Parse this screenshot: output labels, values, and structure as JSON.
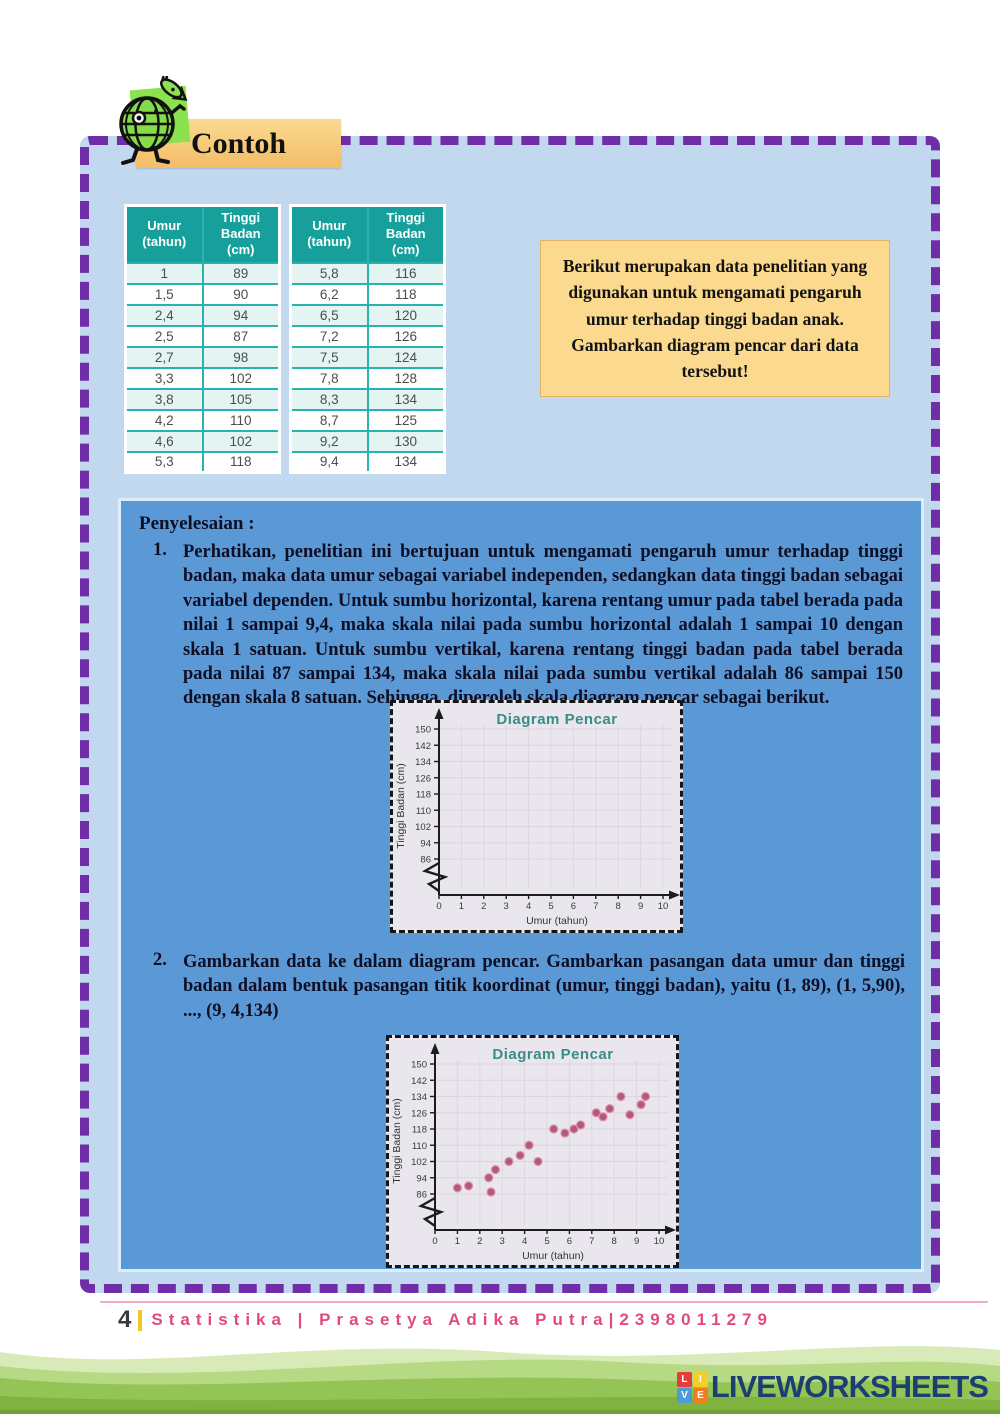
{
  "page": {
    "contoh_label": "Contoh",
    "footer": {
      "page_number": "4",
      "credit": "Statistika | Prasetya Adika Putra|2398011279"
    },
    "branding": {
      "logo_letters": {
        "l": "L",
        "i": "I",
        "v": "V",
        "e": "E"
      },
      "name": "LIVEWORKSHEETS"
    }
  },
  "question_box": {
    "text": "Berikut merupakan data penelitian yang digunakan untuk mengamati pengaruh umur terhadap tinggi badan anak. Gambarkan diagram pencar dari data tersebut!"
  },
  "tables": [
    {
      "headers": [
        "Umur (tahun)",
        "Tinggi Badan (cm)"
      ],
      "rows": [
        [
          "1",
          "89"
        ],
        [
          "1,5",
          "90"
        ],
        [
          "2,4",
          "94"
        ],
        [
          "2,5",
          "87"
        ],
        [
          "2,7",
          "98"
        ],
        [
          "3,3",
          "102"
        ],
        [
          "3,8",
          "105"
        ],
        [
          "4,2",
          "110"
        ],
        [
          "4,6",
          "102"
        ],
        [
          "5,3",
          "118"
        ]
      ]
    },
    {
      "headers": [
        "Umur (tahun)",
        "Tinggi Badan (cm)"
      ],
      "rows": [
        [
          "5,8",
          "116"
        ],
        [
          "6,2",
          "118"
        ],
        [
          "6,5",
          "120"
        ],
        [
          "7,2",
          "126"
        ],
        [
          "7,5",
          "124"
        ],
        [
          "7,8",
          "128"
        ],
        [
          "8,3",
          "134"
        ],
        [
          "8,7",
          "125"
        ],
        [
          "9,2",
          "130"
        ],
        [
          "9,4",
          "134"
        ]
      ]
    }
  ],
  "solution": {
    "title": "Penyelesaian :",
    "items": [
      {
        "number": "1.",
        "text": "Perhatikan, penelitian ini bertujuan untuk mengamati pengaruh umur terhadap tinggi badan, maka data umur sebagai variabel independen, sedangkan data tinggi badan sebagai variabel dependen. Untuk sumbu horizontal, karena rentang umur pada tabel berada pada nilai 1 sampai 9,4, maka skala nilai pada sumbu horizontal adalah 1 sampai 10 dengan skala 1 satuan. Untuk sumbu vertikal, karena rentang tinggi badan pada tabel berada pada nilai 87 sampai 134, maka skala nilai pada sumbu vertikal adalah 86 sampai 150 dengan skala 8 satuan. Sehingga, diperoleh skala diagram pencar sebagai berikut."
      },
      {
        "number": "2.",
        "text": "Gambarkan data ke dalam diagram pencar. Gambarkan pasangan data umur dan tinggi badan dalam bentuk pasangan titik koordinat (umur, tinggi badan), yaitu (1, 89), (1, 5,90), ..., (9, 4,134)"
      }
    ]
  },
  "chart_data": [
    {
      "type": "scatter",
      "title": "Diagram Pencar",
      "xlabel": "Umur (tahun)",
      "ylabel": "Tinggi Badan (cm)",
      "x_ticks": [
        0,
        1,
        2,
        3,
        4,
        5,
        6,
        7,
        8,
        9,
        10
      ],
      "y_ticks": [
        86,
        94,
        102,
        110,
        118,
        126,
        134,
        142,
        150
      ],
      "xlim": [
        0,
        10.5
      ],
      "ylim": [
        86,
        150
      ],
      "axis_break": true,
      "grid": true,
      "legend": "none",
      "points": []
    },
    {
      "type": "scatter",
      "title": "Diagram Pencar",
      "xlabel": "Umur (tahun)",
      "ylabel": "Tinggi Badan (cm)",
      "x_ticks": [
        0,
        1,
        2,
        3,
        4,
        5,
        6,
        7,
        8,
        9,
        10
      ],
      "y_ticks": [
        86,
        94,
        102,
        110,
        118,
        126,
        134,
        142,
        150
      ],
      "xlim": [
        0,
        10.5
      ],
      "ylim": [
        86,
        150
      ],
      "axis_break": true,
      "grid": true,
      "legend": "none",
      "points": [
        [
          1,
          89
        ],
        [
          1.5,
          90
        ],
        [
          2.4,
          94
        ],
        [
          2.5,
          87
        ],
        [
          2.7,
          98
        ],
        [
          3.3,
          102
        ],
        [
          3.8,
          105
        ],
        [
          4.2,
          110
        ],
        [
          4.6,
          102
        ],
        [
          5.3,
          118
        ],
        [
          5.8,
          116
        ],
        [
          6.2,
          118
        ],
        [
          6.5,
          120
        ],
        [
          7.2,
          126
        ],
        [
          7.5,
          124
        ],
        [
          7.8,
          128
        ],
        [
          8.3,
          134
        ],
        [
          8.7,
          125
        ],
        [
          9.2,
          130
        ],
        [
          9.4,
          134
        ]
      ]
    }
  ],
  "colors": {
    "frame_dash_purple": "#6f2da8",
    "page_light_blue": "#c2d8ee",
    "panel_blue": "#5b99d6",
    "table_header_teal": "#17a09b",
    "table_border_teal": "#2ab3ae",
    "orange_box": "#fbd98f",
    "chart_bg": "#e9e6ee",
    "chart_title_teal": "#388d84",
    "chart_grid": "#ded3de",
    "point_fill": "#b4597b",
    "point_halo": "#dd92ad",
    "footer_pink": "#e04a7d",
    "footer_yellow": "#f6c51f",
    "brand_navy": "#1b3f73",
    "banner_greens": [
      "#d9eab9",
      "#b6d984",
      "#93c455",
      "#7fb23e"
    ]
  }
}
